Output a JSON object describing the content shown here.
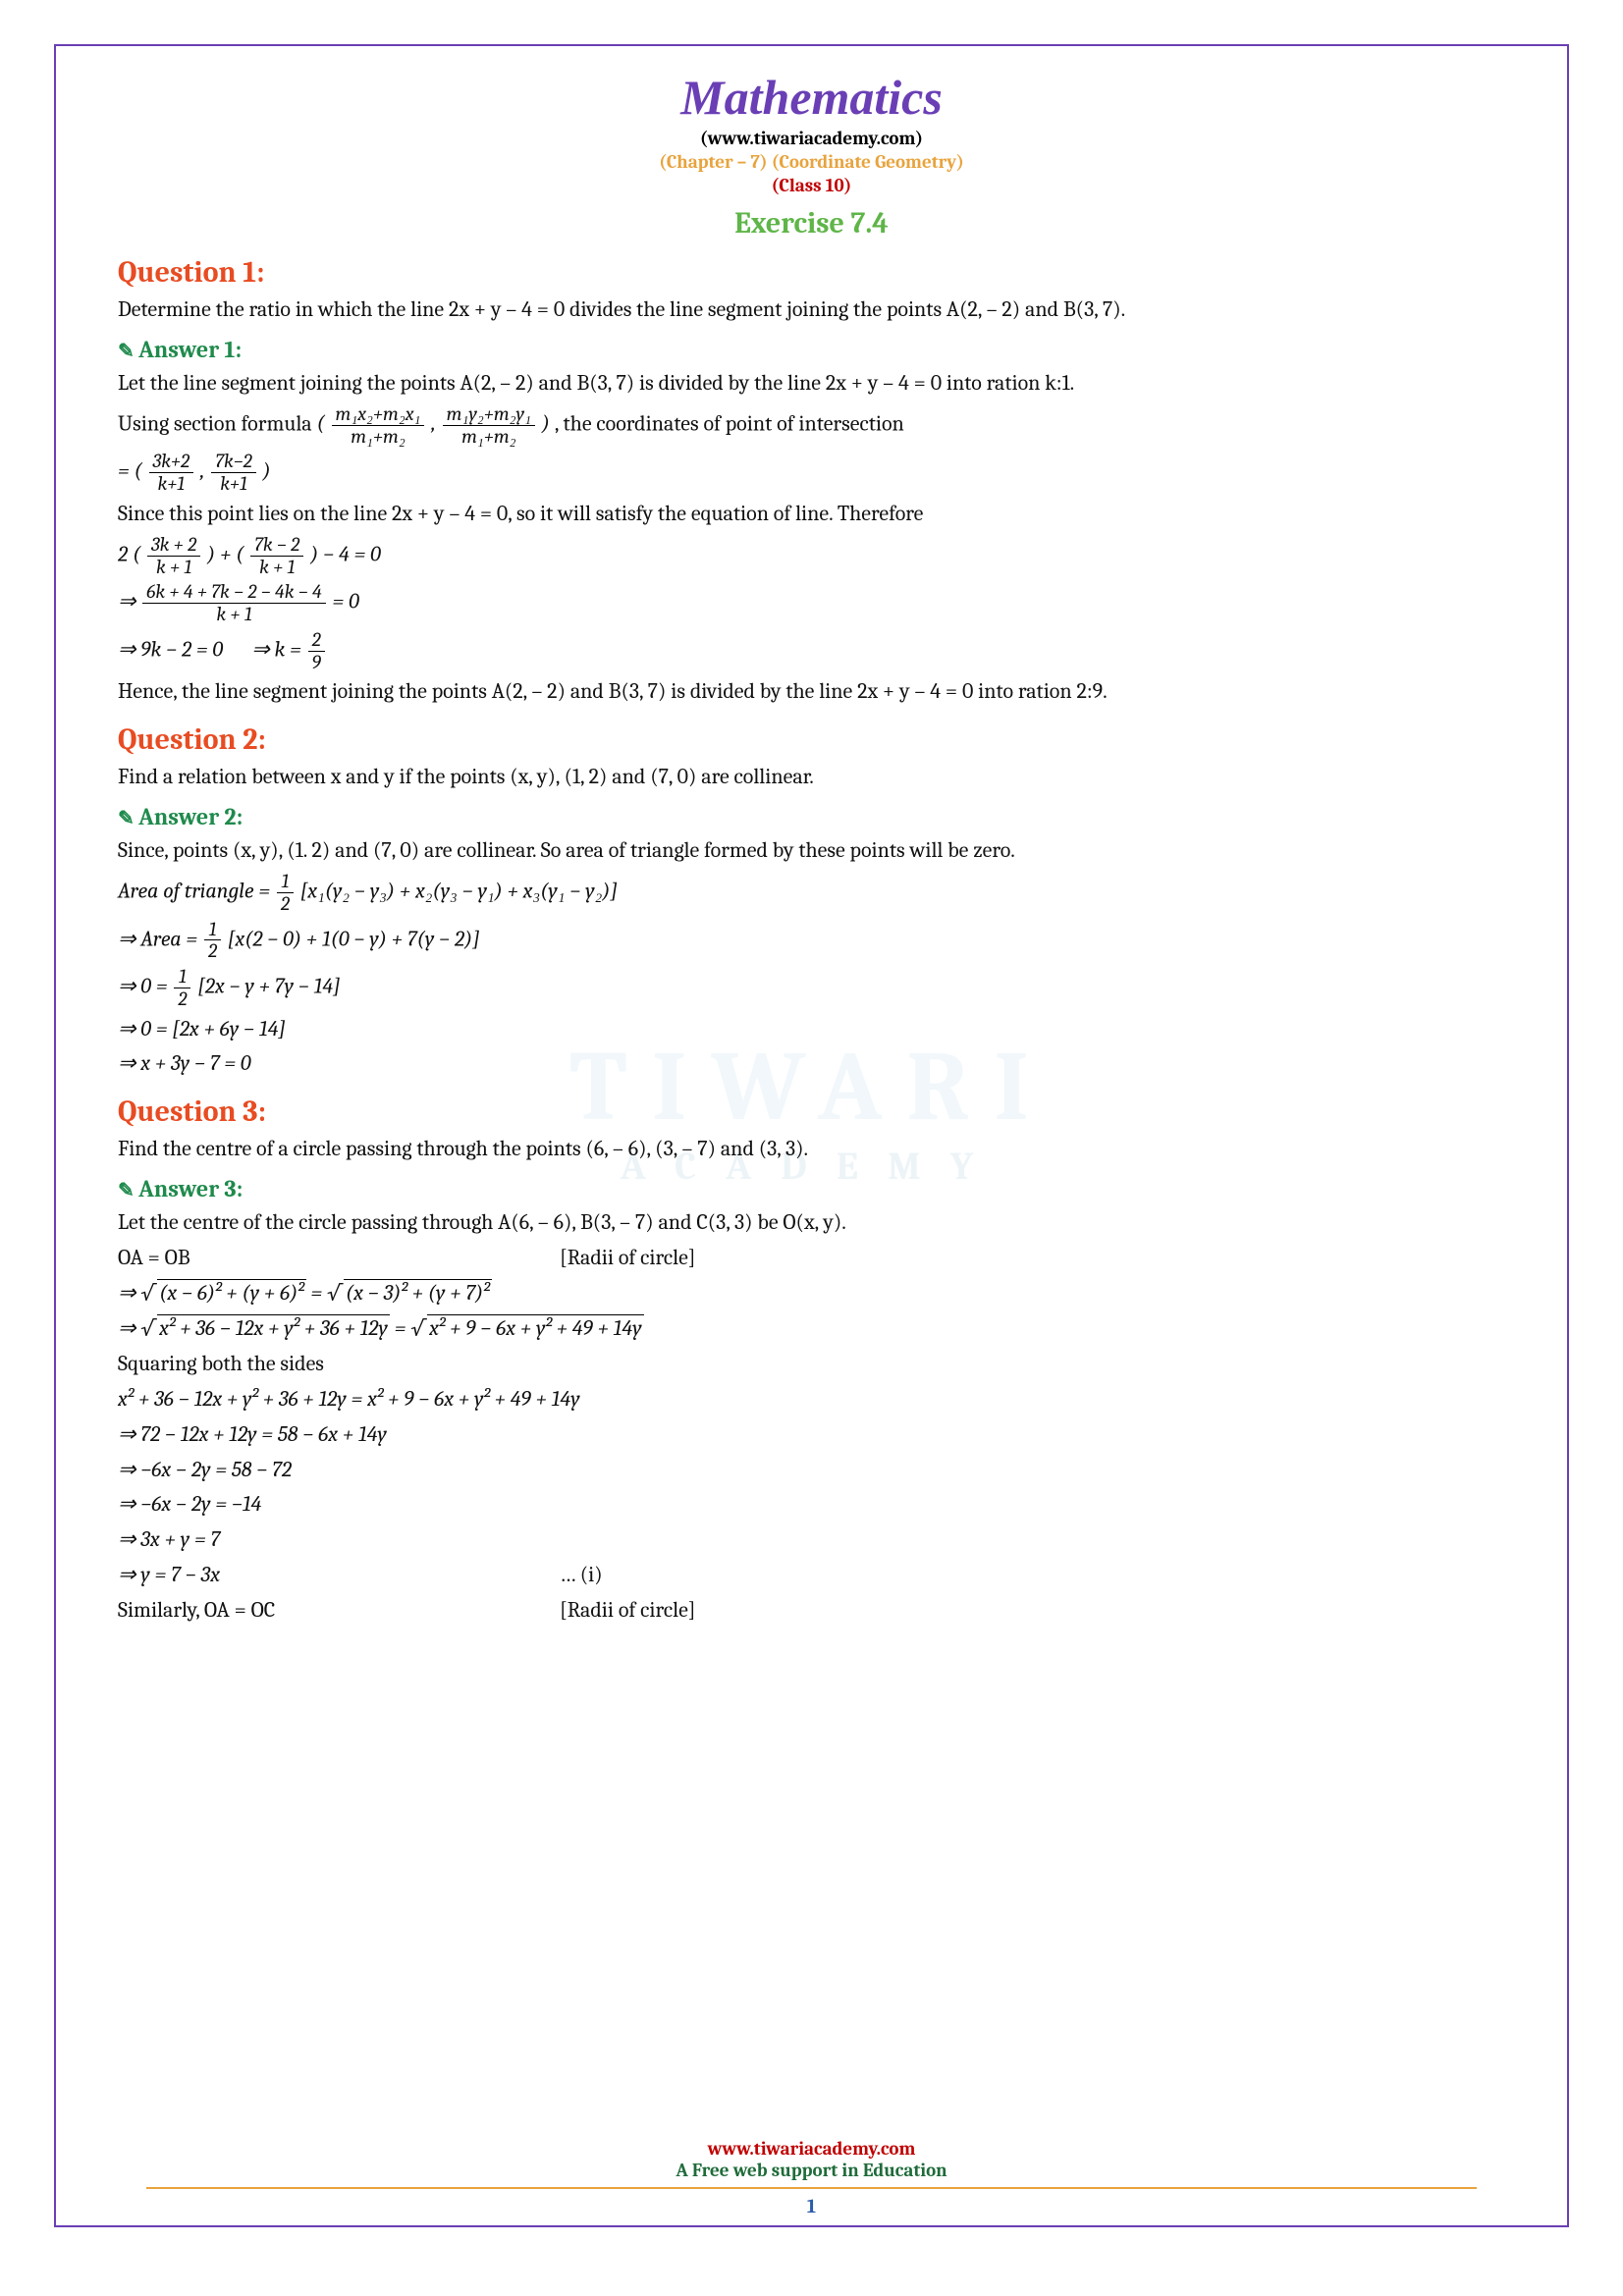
{
  "header": {
    "title": "Mathematics",
    "website": "(www.tiwariacademy.com)",
    "chapter": "(Chapter – 7) (Coordinate Geometry)",
    "class": "(Class 10)",
    "exercise": "Exercise 7.4"
  },
  "q1": {
    "heading": "Question 1:",
    "text": "Determine the ratio in which the line 2x + y – 4 = 0 divides the line segment joining the points A(2, – 2) and B(3, 7).",
    "answer_heading": "Answer 1:",
    "a1": "Let the line segment joining the points A(2, – 2) and B(3, 7) is divided by the line 2x + y – 4 = 0 into ration k:1.",
    "a2a": "Using section formula ",
    "a2b": ", the coordinates of point of intersection",
    "a3": "Since this point lies on the line 2x + y – 4 = 0, so it will satisfy the equation of line. Therefore",
    "a4": "Hence, the line segment joining the points A(2, – 2) and B(3, 7) is divided by the line 2x + y – 4 = 0 into ration 2:9."
  },
  "q2": {
    "heading": "Question 2:",
    "text": "Find a relation between x and y if the points (x, y), (1, 2) and (7, 0) are collinear.",
    "answer_heading": "Answer 2:",
    "a1": "Since, points (x, y), (1. 2) and (7, 0) are collinear. So area of triangle formed by these points will be zero.",
    "a2": "Area of triangle = ",
    "a2b": "[x₁(y₂ − y₃) + x₂(y₃ − y₁) + x₃(y₁ − y₂)]",
    "a3": "⇒ Area = ",
    "a3b": "[x(2 − 0) + 1(0 − y) + 7(y − 2)]",
    "a4": "⇒ 0 = ",
    "a4b": "[2x − y + 7y − 14]",
    "a5": "⇒ 0 = [2x + 6y − 14]",
    "a6": "⇒ x + 3y − 7 = 0"
  },
  "q3": {
    "heading": "Question 3:",
    "text": "Find the centre of a circle passing through the points (6, – 6), (3, – 7) and (3, 3).",
    "answer_heading": "Answer 3:",
    "a1": "Let the centre of the circle passing through A(6, – 6), B(3, – 7) and C(3, 3) be O(x, y).",
    "a2a": "OA = OB",
    "a2b": "[Radii of circle]",
    "a5": "Squaring both the sides",
    "a6": "x² + 36 − 12x + y² + 36 + 12y = x² + 9 − 6x + y² + 49 + 14y",
    "a7": "⇒ 72 − 12x + 12y = 58 − 6x + 14y",
    "a8": "⇒ −6x − 2y = 58 − 72",
    "a9": "⇒ −6x − 2y = −14",
    "a10": "⇒ 3x + y = 7",
    "a11a": "⇒ y = 7 − 3x",
    "a11b": "… (i)",
    "a12a": "Similarly, OA = OC",
    "a12b": "[Radii of circle]"
  },
  "footer": {
    "site": "www.tiwariacademy.com",
    "tag": "A Free web support in Education",
    "page": "1"
  },
  "watermark": {
    "main": "TIWARI",
    "sub": "ACADEMY"
  },
  "colors": {
    "title": "#6a3fb5",
    "chapter": "#e8a33d",
    "class": "#c00000",
    "exercise": "#5fb548",
    "question": "#e84c22",
    "answer": "#1f8a4c",
    "border": "#6a3fb5",
    "footer_rule": "#e8a33d",
    "page_num": "#2a5caa"
  }
}
